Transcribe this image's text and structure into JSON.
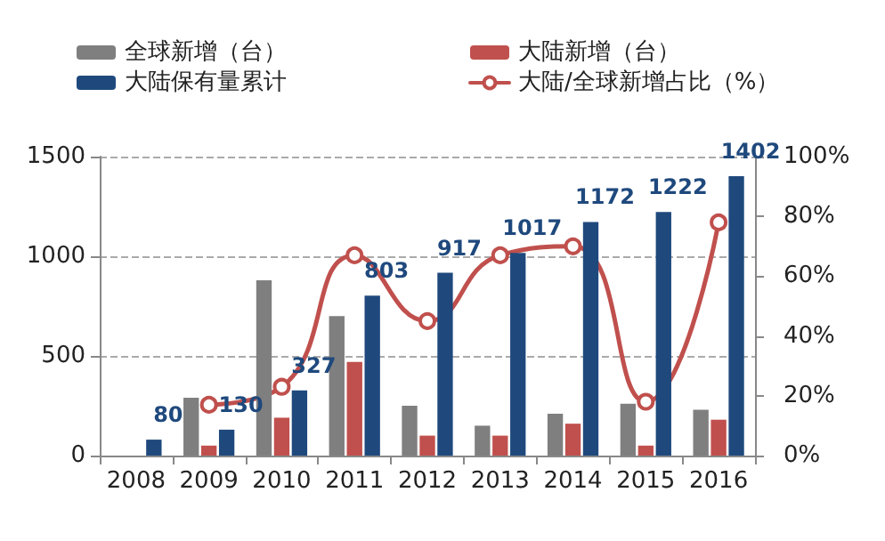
{
  "chart_data": {
    "type": "bar",
    "categories": [
      "2008",
      "2009",
      "2010",
      "2011",
      "2012",
      "2013",
      "2014",
      "2015",
      "2016"
    ],
    "series": [
      {
        "name": "全球新增（台）",
        "color": "#7f7f7f",
        "values": [
          null,
          290,
          880,
          700,
          250,
          150,
          210,
          260,
          230
        ]
      },
      {
        "name": "大陆新增（台）",
        "color": "#c0504d",
        "values": [
          null,
          50,
          190,
          470,
          100,
          100,
          160,
          50,
          180
        ]
      },
      {
        "name": "大陆保有量累计",
        "color": "#1f497d",
        "values": [
          80,
          130,
          327,
          803,
          917,
          1017,
          1172,
          1222,
          1402
        ],
        "data_labels": true
      },
      {
        "name": "大陆/全球新增占比（%）",
        "type": "line",
        "axis": "y2",
        "color": "#c0504d",
        "marker": "circle",
        "line_style": "solid",
        "values": [
          null,
          17,
          23,
          67,
          45,
          67,
          70,
          18,
          78
        ]
      }
    ],
    "ylim": [
      0,
      1500
    ],
    "yticks": [
      0,
      500,
      1000,
      1500
    ],
    "y2lim": [
      0,
      100
    ],
    "y2ticks": [
      {
        "value": 0,
        "label": "0%"
      },
      {
        "value": 20,
        "label": "20%"
      },
      {
        "value": 40,
        "label": "40%"
      },
      {
        "value": 60,
        "label": "60%"
      },
      {
        "value": 80,
        "label": "80%"
      },
      {
        "value": 100,
        "label": "100%"
      }
    ],
    "grid": "y",
    "legend": "top"
  }
}
